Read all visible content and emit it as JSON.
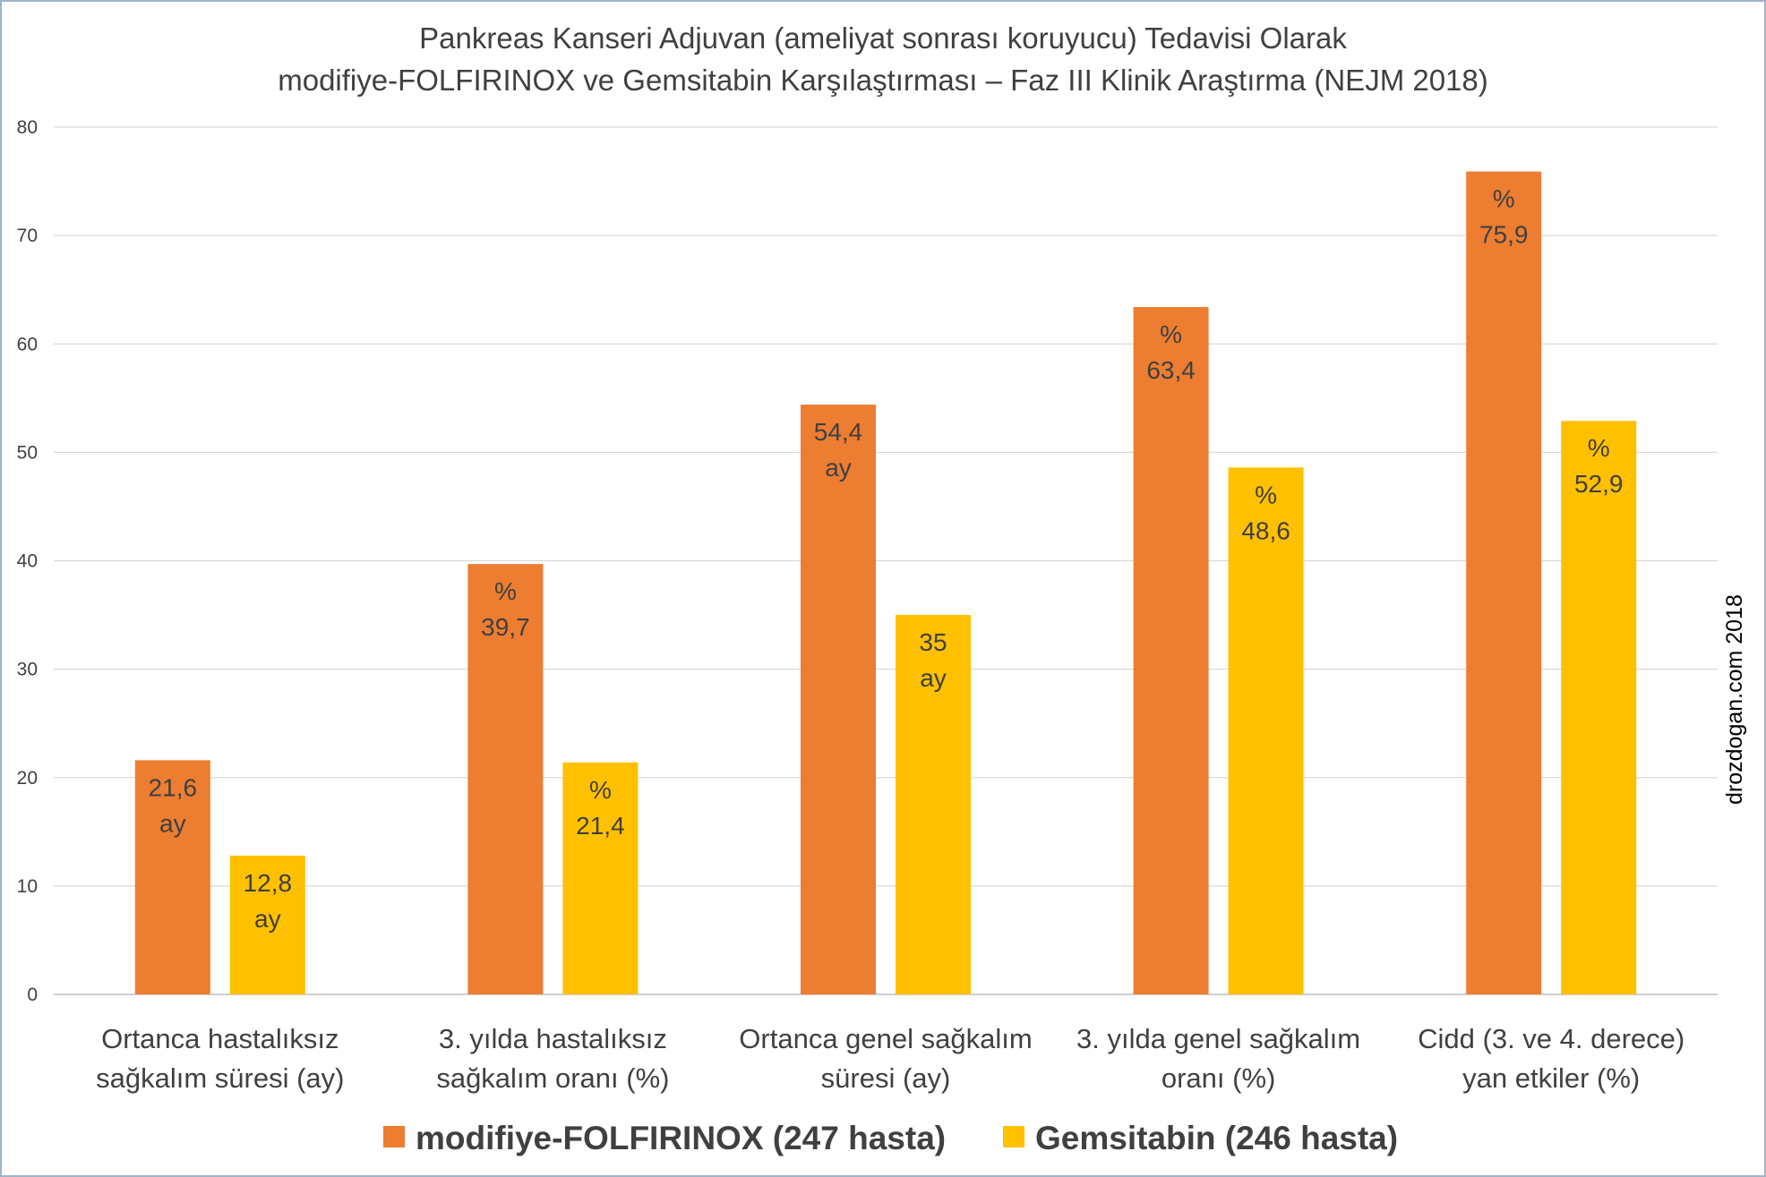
{
  "chart_data": {
    "type": "bar",
    "title_lines": [
      "Pankreas Kanseri Adjuvan (ameliyat sonrası koruyucu) Tedavisi Olarak",
      "modifiye-FOLFIRINOX ve Gemsitabin Karşılaştırması – Faz III Klinik Araştırma (NEJM 2018)"
    ],
    "categories": [
      [
        "Ortanca hastalıksız",
        "sağkalım süresi (ay)"
      ],
      [
        "3. yılda hastalıksız",
        "sağkalım oranı (%)"
      ],
      [
        "Ortanca genel sağkalım",
        "süresi (ay)"
      ],
      [
        "3. yılda genel sağkalım",
        "oranı (%)"
      ],
      [
        "Cidd (3. ve 4. derece)",
        "yan etkiler (%)"
      ]
    ],
    "series": [
      {
        "name": "modifiye-FOLFIRINOX (247 hasta)",
        "color": "#ed7d31",
        "values": [
          21.6,
          39.7,
          54.4,
          63.4,
          75.9
        ],
        "labels": [
          [
            "21,6",
            "ay"
          ],
          [
            "%",
            "39,7"
          ],
          [
            "54,4",
            "ay"
          ],
          [
            "%",
            "63,4"
          ],
          [
            "%",
            "75,9"
          ]
        ]
      },
      {
        "name": "Gemsitabin (246 hasta)",
        "color": "#ffc000",
        "values": [
          12.8,
          21.4,
          35,
          48.6,
          52.9
        ],
        "labels": [
          [
            "12,8",
            "ay"
          ],
          [
            "%",
            "21,4"
          ],
          [
            "35",
            "ay"
          ],
          [
            "%",
            "48,6"
          ],
          [
            "%",
            "52,9"
          ]
        ]
      }
    ],
    "ylim": [
      0,
      80
    ],
    "yticks": [
      0,
      10,
      20,
      30,
      40,
      50,
      60,
      70,
      80
    ],
    "grid": true,
    "legend_position": "bottom",
    "gridline_color": "#d9d9d9",
    "text_color": "#404040"
  },
  "watermark": "drozdogan.com 2018"
}
